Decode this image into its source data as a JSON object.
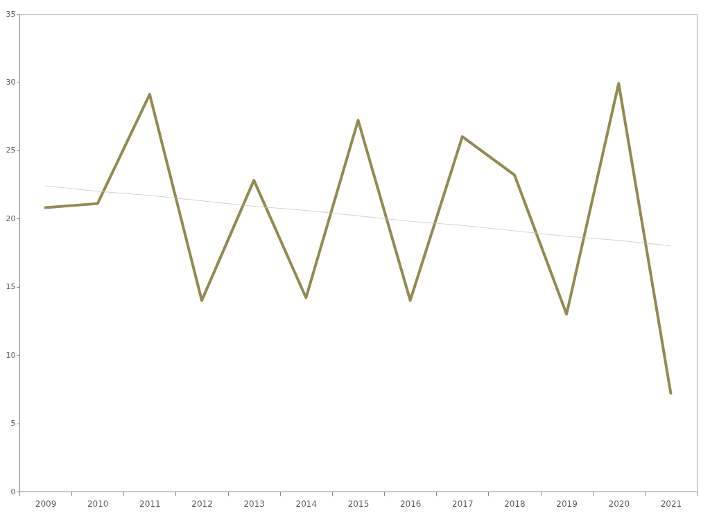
{
  "chart_data": {
    "type": "line",
    "categories": [
      "2009",
      "2010",
      "2011",
      "2012",
      "2013",
      "2014",
      "2015",
      "2016",
      "2017",
      "2018",
      "2019",
      "2020",
      "2021"
    ],
    "series": [
      {
        "color": "#938a50",
        "values": [
          20.8,
          21.1,
          29.1,
          14.0,
          22.8,
          14.2,
          27.2,
          14.0,
          26.0,
          23.2,
          13.0,
          29.9,
          7.2
        ]
      },
      {
        "type": "line",
        "color": "#c4c4c4",
        "values": [
          22.4,
          22.0,
          21.7,
          21.3,
          20.9,
          20.6,
          20.2,
          19.8,
          19.5,
          19.1,
          18.7,
          18.4,
          18.0
        ]
      }
    ],
    "ylim": [
      0,
      35
    ],
    "yticks": [
      0,
      5,
      10,
      15,
      20,
      25,
      30,
      35
    ],
    "grid": false,
    "legend": false,
    "marker": "none",
    "line_style": "solid"
  }
}
